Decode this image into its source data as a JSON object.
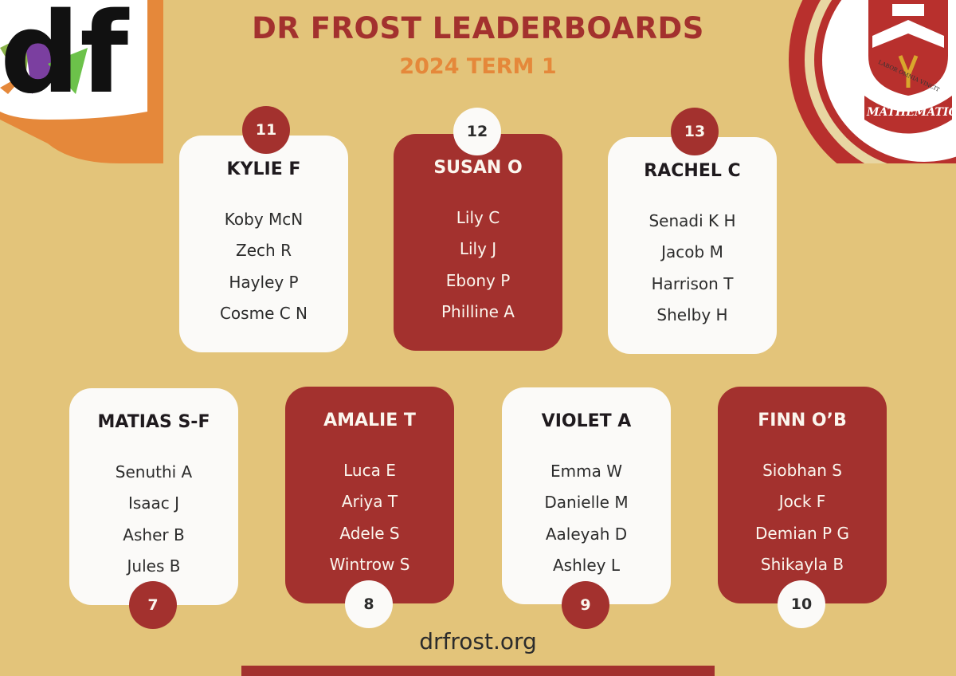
{
  "header": {
    "title": "DR FROST LEADERBOARDS",
    "subtitle": "2024 TERM 1"
  },
  "logo": {
    "text": "df",
    "icon": "df-logo"
  },
  "crest": {
    "motto": "LABOR OMNIA VINCIT",
    "label": "MATHEMATICS",
    "icon": "school-crest"
  },
  "years": [
    {
      "year": "11",
      "leader": "KYLIE F",
      "students": [
        "Koby McN",
        "Zech R",
        "Hayley P",
        "Cosme C N"
      ]
    },
    {
      "year": "12",
      "leader": "SUSAN O",
      "students": [
        "Lily C",
        "Lily J",
        "Ebony P",
        "Philline A"
      ]
    },
    {
      "year": "13",
      "leader": "RACHEL C",
      "students": [
        "Senadi K H",
        "Jacob M",
        "Harrison T",
        "Shelby H"
      ]
    },
    {
      "year": "7",
      "leader": "MATIAS S-F",
      "students": [
        "Senuthi A",
        "Isaac J",
        "Asher B",
        "Jules B"
      ]
    },
    {
      "year": "8",
      "leader": "AMALIE T",
      "students": [
        "Luca E",
        "Ariya T",
        "Adele S",
        "Wintrow S"
      ]
    },
    {
      "year": "9",
      "leader": "VIOLET A",
      "students": [
        "Emma W",
        "Danielle M",
        "Aaleyah D",
        "Ashley L"
      ]
    },
    {
      "year": "10",
      "leader": "FINN O’B",
      "students": [
        "Siobhan S",
        "Jock F",
        "Demian P G",
        "Shikayla B"
      ]
    }
  ],
  "footer": {
    "url": "drfrost.org"
  },
  "colors": {
    "background": "#e3c47a",
    "primary_red": "#a3312e",
    "accent_orange": "#e5883a",
    "card_white": "#fbfaf8"
  }
}
